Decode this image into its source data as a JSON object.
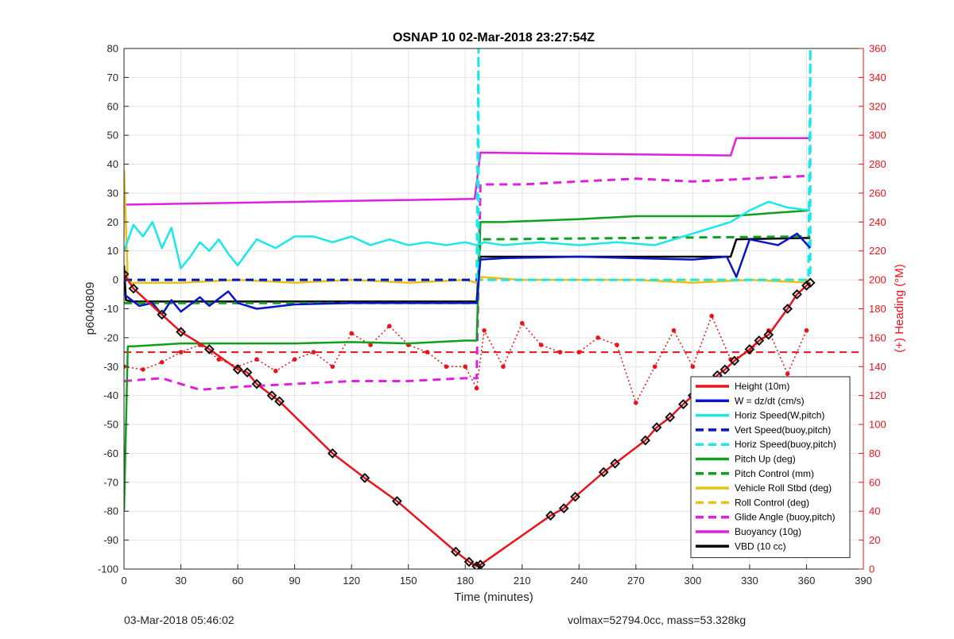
{
  "chart_data": {
    "type": "line",
    "title": "OSNAP 10 02-Mar-2018 23:27:54Z",
    "xlabel": "Time (minutes)",
    "ylabel_left": "p6040809",
    "ylabel_right": "(+) Heading (°M)",
    "xlim": [
      0,
      390
    ],
    "ylim_left": [
      -100,
      80
    ],
    "ylim_right": [
      0,
      360
    ],
    "x_ticks": [
      0,
      30,
      60,
      90,
      120,
      150,
      180,
      210,
      240,
      270,
      300,
      330,
      360,
      390
    ],
    "y_left_ticks": [
      80,
      70,
      60,
      50,
      40,
      30,
      20,
      10,
      0,
      -10,
      -20,
      -30,
      -40,
      -50,
      -60,
      -70,
      -80,
      -90,
      -100
    ],
    "y_right_ticks": [
      360,
      340,
      320,
      300,
      280,
      260,
      240,
      220,
      200,
      180,
      160,
      140,
      120,
      100,
      80,
      60,
      40,
      20,
      0
    ],
    "grid": true,
    "legend_position": "bottom-right",
    "series": [
      {
        "name": "Height (10m)",
        "color": "#e8131b",
        "style": "solid",
        "markers": "diamond",
        "x": [
          0,
          5,
          20,
          30,
          45,
          60,
          65,
          70,
          78,
          82,
          110,
          127,
          144,
          175,
          182,
          186,
          188,
          225,
          232,
          238,
          253,
          259,
          275,
          281,
          288,
          295,
          300,
          308,
          313,
          317,
          322,
          330,
          335,
          340,
          350,
          355,
          360,
          362
        ],
        "y": [
          2,
          -3,
          -12,
          -18,
          -24,
          -31,
          -32,
          -36,
          -40,
          -42,
          -60,
          -68.5,
          -76.5,
          -94,
          -97.5,
          -99,
          -98.5,
          -81.5,
          -79,
          -75,
          -66.5,
          -63.5,
          -55.5,
          -51,
          -47.5,
          -43,
          -40,
          -36,
          -33,
          -31,
          -28,
          -24,
          -21,
          -19,
          -10,
          -5,
          -2,
          -1
        ]
      },
      {
        "name": "W = dz/dt (cm/s)",
        "color": "#0a14c8",
        "style": "solid",
        "x": [
          0,
          8,
          15,
          20,
          25,
          30,
          40,
          45,
          55,
          60,
          70,
          90,
          120,
          150,
          180,
          186,
          188,
          200,
          240,
          270,
          300,
          318,
          323,
          330,
          345,
          355,
          362
        ],
        "y": [
          -5,
          -9,
          -8,
          -12,
          -7,
          -11,
          -6,
          -9,
          -4,
          -8,
          -10,
          -8.5,
          -8,
          -8,
          -8,
          -8,
          7,
          7.5,
          8,
          7.5,
          7,
          8,
          1,
          14,
          12,
          16,
          11
        ]
      },
      {
        "name": "Horiz Speed(W,pitch)",
        "color": "#19e8e8",
        "style": "solid",
        "x": [
          0,
          5,
          10,
          15,
          20,
          25,
          30,
          35,
          40,
          45,
          50,
          55,
          60,
          70,
          80,
          90,
          100,
          110,
          120,
          130,
          140,
          150,
          160,
          170,
          180,
          186,
          190,
          200,
          220,
          240,
          260,
          280,
          300,
          320,
          330,
          340,
          350,
          362
        ],
        "y": [
          10,
          19,
          15,
          20,
          11,
          18,
          4,
          8,
          13,
          10,
          14,
          9,
          5,
          14,
          11,
          15,
          15,
          13,
          15,
          12,
          14,
          12,
          13,
          12,
          13,
          12,
          13,
          12,
          13,
          12,
          13,
          12,
          16,
          20,
          24,
          27,
          25,
          24
        ]
      },
      {
        "name": "Vert Speed(buoy,pitch)",
        "color": "#0a14c8",
        "style": "dashed",
        "x": [
          0,
          186
        ],
        "y": [
          0,
          0
        ]
      },
      {
        "name": "Horiz Speed(buoy,pitch)",
        "color": "#19e8e8",
        "style": "dashed",
        "x": [
          0,
          186,
          187,
          187,
          361,
          362,
          362
        ],
        "y": [
          0,
          0,
          80,
          0,
          0,
          80,
          0
        ]
      },
      {
        "name": "Pitch Up (deg)",
        "color": "#0fa01e",
        "style": "solid",
        "x": [
          0,
          2,
          5,
          30,
          60,
          90,
          120,
          150,
          180,
          186,
          188,
          200,
          240,
          270,
          300,
          320,
          340,
          362
        ],
        "y": [
          -80,
          -23,
          -23,
          -22,
          -22,
          -22,
          -21.5,
          -22,
          -21,
          -21,
          20,
          20,
          21,
          22,
          22,
          22,
          23,
          24
        ]
      },
      {
        "name": "Pitch Control (mm)",
        "color": "#0fa01e",
        "style": "dashed",
        "x": [
          0,
          186,
          188,
          362
        ],
        "y": [
          -8,
          -8,
          14,
          15
        ]
      },
      {
        "name": "Vehicle Roll Stbd (deg)",
        "color": "#e6c21a",
        "style": "solid",
        "x": [
          0,
          2,
          4,
          30,
          60,
          90,
          120,
          150,
          180,
          186,
          188,
          210,
          240,
          270,
          300,
          330,
          362
        ],
        "y": [
          38,
          0,
          -1,
          -1,
          0,
          -1,
          0,
          -1,
          0,
          -1,
          1,
          0,
          0,
          0,
          -1,
          0,
          -1
        ]
      },
      {
        "name": "Roll Control (deg)",
        "color": "#e6c21a",
        "style": "dashed",
        "x": [
          0,
          362
        ],
        "y": [
          0,
          0
        ]
      },
      {
        "name": "Glide Angle (buoy,pitch)",
        "color": "#e020e0",
        "style": "dashed",
        "x": [
          0,
          20,
          40,
          60,
          90,
          120,
          150,
          180,
          186,
          188,
          210,
          240,
          270,
          300,
          330,
          362
        ],
        "y": [
          -35,
          -34,
          -38,
          -37,
          -36,
          -35,
          -35,
          -34,
          -34,
          33,
          33,
          34,
          35,
          34,
          35,
          36
        ]
      },
      {
        "name": "Buoyancy (10g)",
        "color": "#e020e0",
        "style": "solid",
        "x": [
          0,
          185,
          188,
          320,
          323,
          362
        ],
        "y": [
          26,
          28,
          44,
          43,
          49,
          49
        ]
      },
      {
        "name": "VBD (10 cc)",
        "color": "#000000",
        "style": "solid",
        "x": [
          0,
          1,
          4,
          186,
          188,
          320,
          323,
          362
        ],
        "y": [
          5,
          -7,
          -7.5,
          -7.5,
          8,
          8,
          14,
          14.5
        ]
      }
    ],
    "heading": {
      "color": "#e8131b",
      "style": "dotted-markers",
      "axis": "right",
      "mean": 150,
      "x": [
        0,
        10,
        20,
        30,
        40,
        50,
        60,
        70,
        80,
        90,
        100,
        110,
        120,
        130,
        140,
        150,
        160,
        170,
        180,
        186,
        190,
        200,
        210,
        220,
        230,
        240,
        250,
        260,
        270,
        280,
        290,
        300,
        310,
        320,
        330,
        340,
        350,
        360
      ],
      "y": [
        140,
        138,
        143,
        150,
        155,
        145,
        140,
        145,
        137,
        145,
        150,
        140,
        163,
        155,
        168,
        155,
        150,
        140,
        140,
        125,
        165,
        140,
        170,
        155,
        150,
        150,
        160,
        155,
        115,
        140,
        165,
        140,
        175,
        145,
        150,
        165,
        135,
        165
      ]
    }
  },
  "footer": {
    "left_text": "03-Mar-2018 05:46:02",
    "right_text": "volmax=52794.0cc, mass=53.328kg"
  }
}
